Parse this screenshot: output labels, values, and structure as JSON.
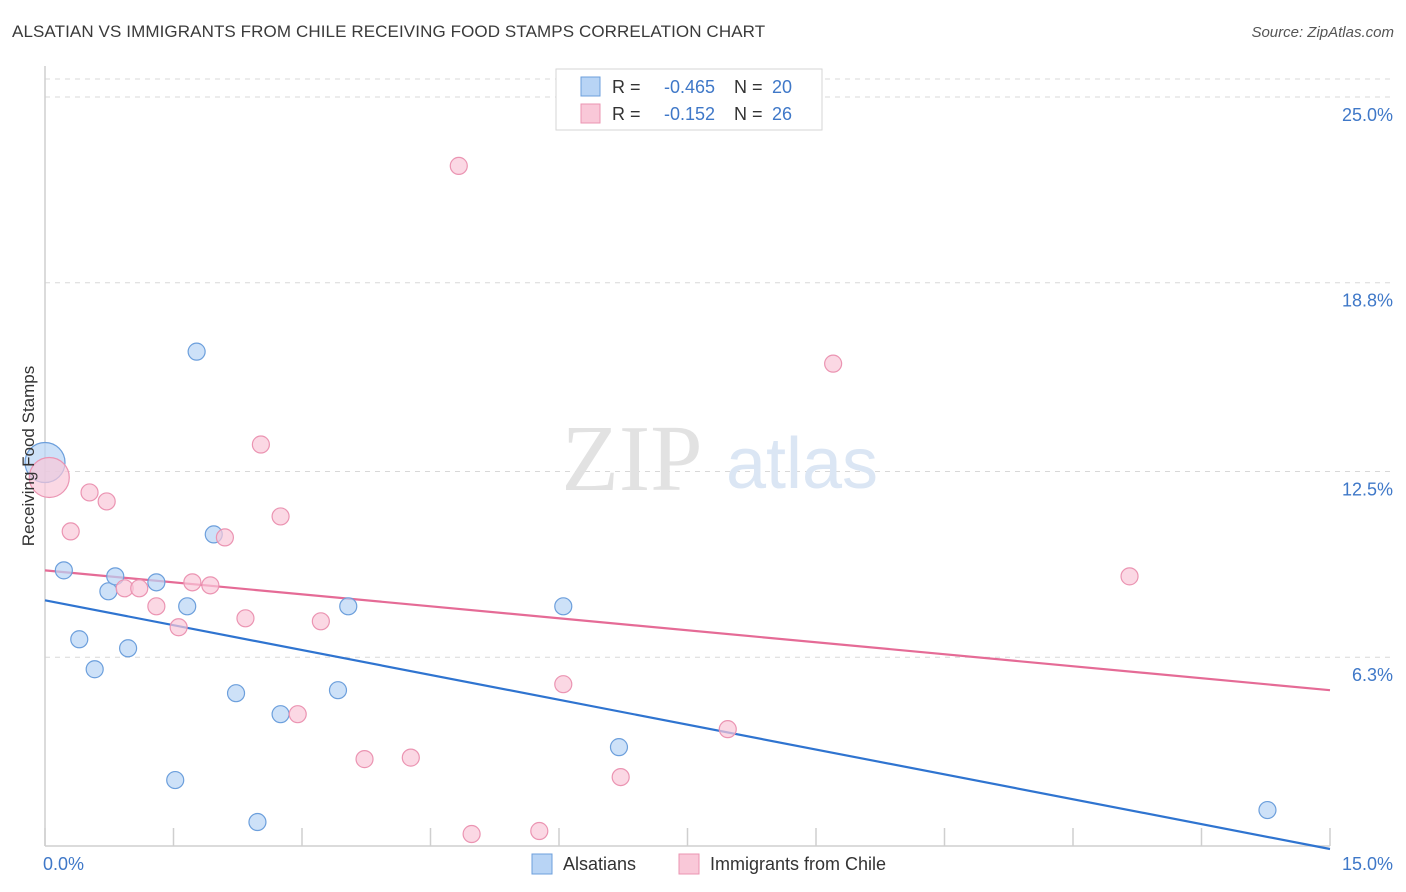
{
  "title": "ALSATIAN VS IMMIGRANTS FROM CHILE RECEIVING FOOD STAMPS CORRELATION CHART",
  "source": "Source: ZipAtlas.com",
  "watermark": {
    "zip": "ZIP",
    "atlas": "atlas"
  },
  "legend_stats": [
    {
      "r_label": "R =",
      "r_value": "-0.465",
      "n_label": "N =",
      "n_value": "20"
    },
    {
      "r_label": "R =",
      "r_value": "-0.152",
      "n_label": "N =",
      "n_value": "26"
    }
  ],
  "colors": {
    "blue_fill": "#b8d4f5",
    "blue_stroke": "#6c9fdc",
    "blue_line": "#2f74d0",
    "pink_fill": "#f9c8d8",
    "pink_stroke": "#eb94b2",
    "pink_line": "#e56b96",
    "value_text": "#3f78c8",
    "grid": "#d8d8d8",
    "axis": "#cfcfcf"
  },
  "chart_data": {
    "type": "scatter",
    "title": "ALSATIAN VS IMMIGRANTS FROM CHILE RECEIVING FOOD STAMPS CORRELATION CHART",
    "xlabel": "",
    "ylabel": "Receiving Food Stamps",
    "xlim": [
      0,
      15
    ],
    "ylim": [
      0,
      25.6
    ],
    "x_tick_labels": [
      {
        "value": 0,
        "label": "0.0%"
      },
      {
        "value": 15,
        "label": "15.0%"
      }
    ],
    "y_ticks": [
      {
        "value": 25.0,
        "label": "25.0%"
      },
      {
        "value": 18.8,
        "label": "18.8%"
      },
      {
        "value": 12.5,
        "label": "12.5%"
      },
      {
        "value": 6.3,
        "label": "6.3%"
      }
    ],
    "grid": true,
    "legend_position": "top-center",
    "series": [
      {
        "name": "Alsatians",
        "color": "#b8d4f5",
        "stroke": "#6c9fdc",
        "trend": {
          "x": [
            0,
            15
          ],
          "y": [
            8.2,
            -0.1
          ]
        },
        "points": [
          {
            "x": 0.0,
            "y": 12.8,
            "big": true
          },
          {
            "x": 0.22,
            "y": 9.2
          },
          {
            "x": 0.4,
            "y": 6.9
          },
          {
            "x": 0.58,
            "y": 5.9
          },
          {
            "x": 0.74,
            "y": 8.5
          },
          {
            "x": 0.82,
            "y": 9.0
          },
          {
            "x": 0.97,
            "y": 6.6
          },
          {
            "x": 1.3,
            "y": 8.8
          },
          {
            "x": 1.52,
            "y": 2.2
          },
          {
            "x": 1.66,
            "y": 8.0
          },
          {
            "x": 1.77,
            "y": 16.5
          },
          {
            "x": 1.97,
            "y": 10.4
          },
          {
            "x": 2.23,
            "y": 5.1
          },
          {
            "x": 2.48,
            "y": 0.8
          },
          {
            "x": 2.75,
            "y": 4.4
          },
          {
            "x": 3.42,
            "y": 5.2
          },
          {
            "x": 3.54,
            "y": 8.0
          },
          {
            "x": 6.05,
            "y": 8.0
          },
          {
            "x": 6.7,
            "y": 3.3
          },
          {
            "x": 14.27,
            "y": 1.2
          }
        ]
      },
      {
        "name": "Immigrants from Chile",
        "color": "#f9c8d8",
        "stroke": "#eb94b2",
        "trend": {
          "x": [
            0,
            15
          ],
          "y": [
            9.2,
            5.2
          ]
        },
        "points": [
          {
            "x": 0.05,
            "y": 12.3,
            "big": true
          },
          {
            "x": 0.3,
            "y": 10.5
          },
          {
            "x": 0.52,
            "y": 11.8
          },
          {
            "x": 0.72,
            "y": 11.5
          },
          {
            "x": 0.93,
            "y": 8.6
          },
          {
            "x": 1.1,
            "y": 8.6
          },
          {
            "x": 1.3,
            "y": 8.0
          },
          {
            "x": 1.56,
            "y": 7.3
          },
          {
            "x": 1.72,
            "y": 8.8
          },
          {
            "x": 1.93,
            "y": 8.7
          },
          {
            "x": 2.1,
            "y": 10.3
          },
          {
            "x": 2.34,
            "y": 7.6
          },
          {
            "x": 2.52,
            "y": 13.4
          },
          {
            "x": 2.75,
            "y": 11.0
          },
          {
            "x": 3.22,
            "y": 7.5
          },
          {
            "x": 2.95,
            "y": 4.4
          },
          {
            "x": 3.73,
            "y": 2.9
          },
          {
            "x": 4.27,
            "y": 2.95
          },
          {
            "x": 4.83,
            "y": 22.7
          },
          {
            "x": 4.98,
            "y": 0.4
          },
          {
            "x": 5.77,
            "y": 0.5
          },
          {
            "x": 6.05,
            "y": 5.4
          },
          {
            "x": 6.72,
            "y": 2.3
          },
          {
            "x": 7.97,
            "y": 3.9
          },
          {
            "x": 9.2,
            "y": 16.1
          },
          {
            "x": 12.66,
            "y": 9.0
          }
        ]
      }
    ]
  }
}
